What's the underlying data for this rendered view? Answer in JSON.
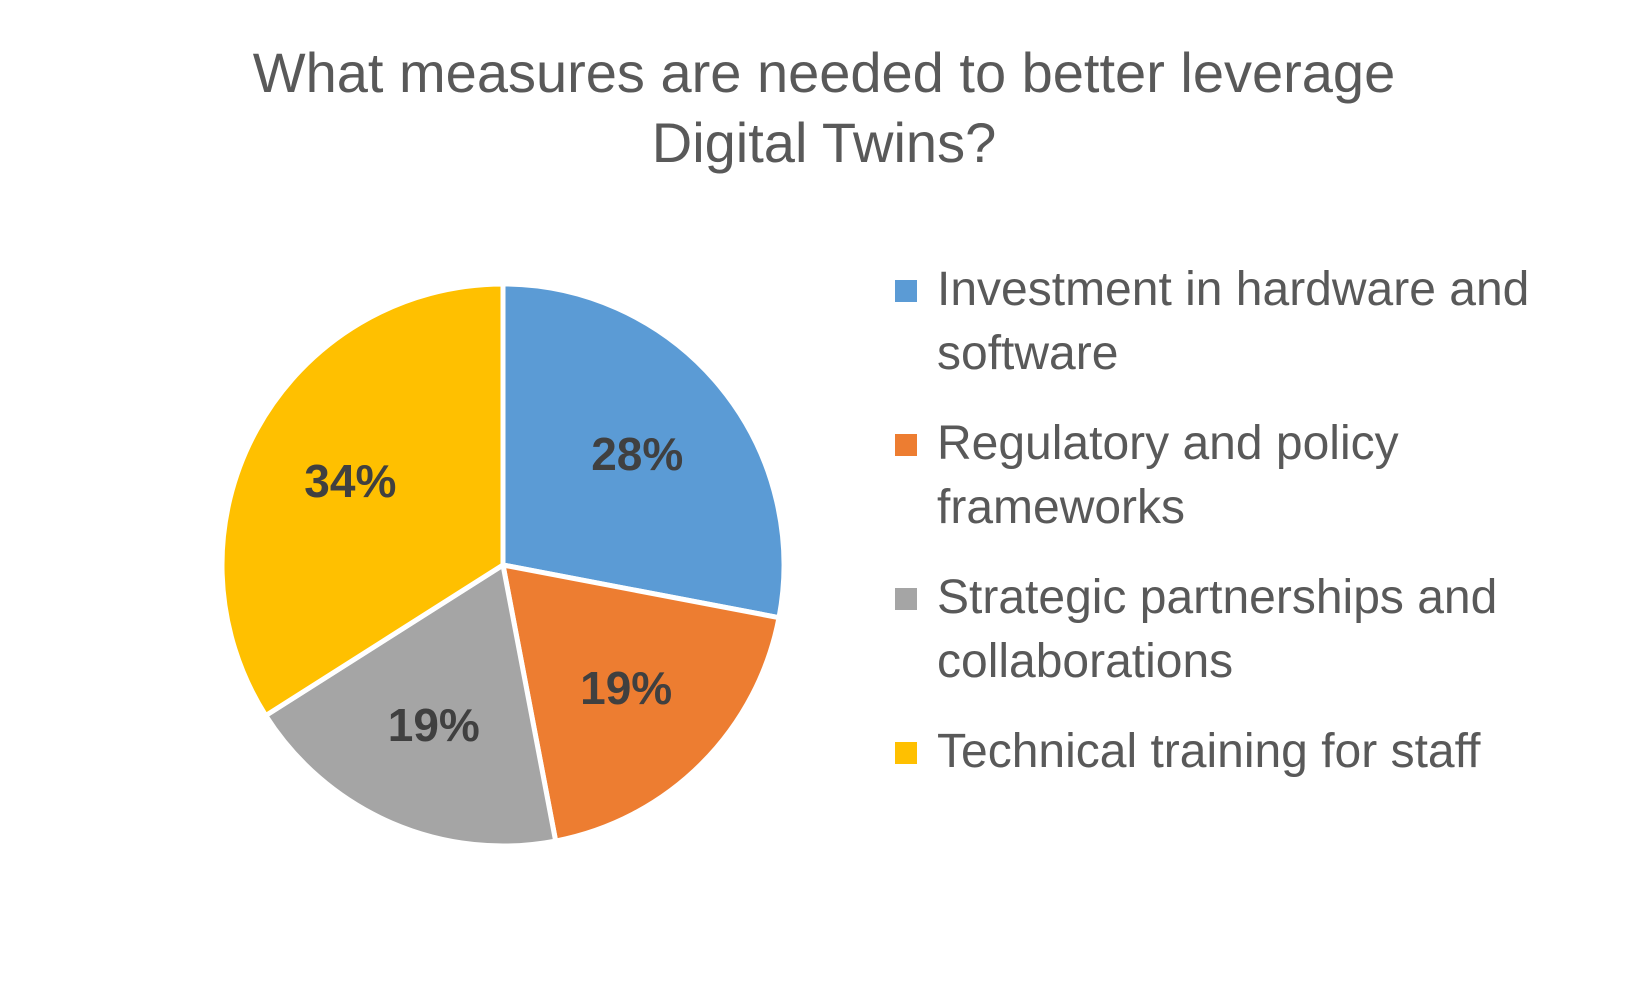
{
  "chart_data": {
    "type": "pie",
    "title_lines": [
      "What measures are needed to better leverage",
      "Digital Twins?"
    ],
    "categories": [
      "Investment in hardware and software",
      "Regulatory and policy frameworks",
      "Strategic partnerships and collaborations",
      "Technical training for staff"
    ],
    "values": [
      28,
      19,
      19,
      34
    ],
    "labels": [
      "28%",
      "19%",
      "19%",
      "34%"
    ],
    "colors": [
      "#5B9BD5",
      "#ED7D31",
      "#A5A5A5",
      "#FFC000"
    ],
    "legend_position": "right",
    "legend": [
      {
        "lines": [
          "Investment in hardware and",
          "software"
        ]
      },
      {
        "lines": [
          "Regulatory and policy",
          "frameworks"
        ]
      },
      {
        "lines": [
          "Strategic partnerships and",
          "collaborations"
        ]
      },
      {
        "lines": [
          "Technical training for staff"
        ]
      }
    ]
  }
}
